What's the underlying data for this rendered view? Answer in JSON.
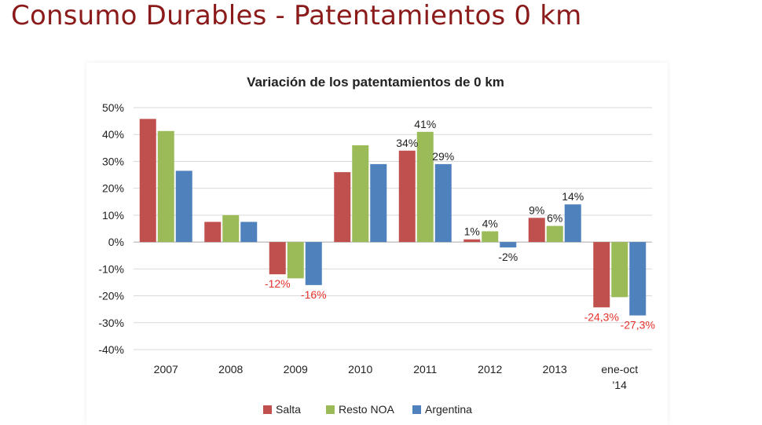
{
  "slide_title": "Consumo Durables - Patentamientos 0 km",
  "colors": {
    "title": "#8b1a1a",
    "negative_label": "#e8312a",
    "label": "#222222"
  },
  "chart_data": {
    "type": "bar",
    "title": "Variación de los patentamientos de 0 km",
    "xlabel": "",
    "ylabel": "",
    "categories": [
      "2007",
      "2008",
      "2009",
      "2010",
      "2011",
      "2012",
      "2013",
      "ene-oct '14"
    ],
    "ylim": [
      -40,
      50
    ],
    "yticks": [
      50,
      40,
      30,
      20,
      10,
      0,
      -10,
      -20,
      -30,
      -40
    ],
    "ytick_labels": [
      "50%",
      "40%",
      "30%",
      "20%",
      "10%",
      "0%",
      "-10%",
      "-20%",
      "-30%",
      "-40%"
    ],
    "grid": true,
    "legend_position": "bottom",
    "series": [
      {
        "name": "Salta",
        "color": "#c0504d",
        "values": [
          45.8,
          7.5,
          -12,
          26,
          34,
          1,
          9,
          -24.3
        ],
        "labels": [
          "",
          "",
          "-12%",
          "",
          "34%",
          "1%",
          "9%",
          "-24,3%"
        ]
      },
      {
        "name": "Resto NOA",
        "color": "#9bbb59",
        "values": [
          41.3,
          10,
          -13.5,
          36,
          41,
          4,
          6,
          -20.5
        ],
        "labels": [
          "",
          "",
          "",
          "",
          "41%",
          "4%",
          "6%",
          ""
        ]
      },
      {
        "name": "Argentina",
        "color": "#4f81bd",
        "values": [
          26.5,
          7.5,
          -16,
          29,
          29,
          -2,
          14,
          -27.3
        ],
        "labels": [
          "",
          "",
          "-16%",
          "",
          "29%",
          "-2%",
          "14%",
          "-27,3%"
        ]
      }
    ]
  }
}
